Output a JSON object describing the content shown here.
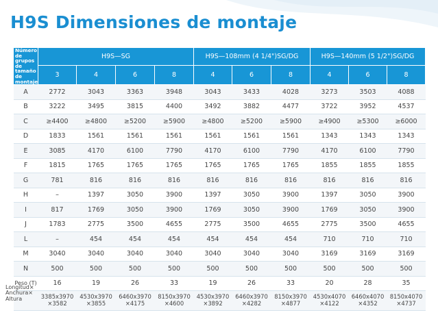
{
  "title": "H9S Dimensiones de montaje",
  "table": {
    "corner_label": "Número de grupos de tamaño de montaje",
    "groups": [
      "H9S—SG",
      "H9S—108mm (4 1/4\")SG/DG",
      "H9S—140mm (5 1/2\")SG/DG"
    ],
    "sizes": [
      [
        "3",
        "4",
        "6",
        "8"
      ],
      [
        "4",
        "6",
        "8"
      ],
      [
        "4",
        "6",
        "8"
      ]
    ],
    "rows": [
      {
        "label": "A",
        "values": [
          "2772",
          "3043",
          "3363",
          "3948",
          "3043",
          "3433",
          "4028",
          "3273",
          "3503",
          "4088"
        ]
      },
      {
        "label": "B",
        "values": [
          "3222",
          "3495",
          "3815",
          "4400",
          "3492",
          "3882",
          "4477",
          "3722",
          "3952",
          "4537"
        ]
      },
      {
        "label": "C",
        "values": [
          "≥4400",
          "≥4800",
          "≥5200",
          "≥5900",
          "≥4800",
          "≥5200",
          "≥5900",
          "≥4900",
          "≥5300",
          "≥6000"
        ]
      },
      {
        "label": "D",
        "values": [
          "1833",
          "1561",
          "1561",
          "1561",
          "1561",
          "1561",
          "1561",
          "1343",
          "1343",
          "1343"
        ]
      },
      {
        "label": "E",
        "values": [
          "3085",
          "4170",
          "6100",
          "7790",
          "4170",
          "6100",
          "7790",
          "4170",
          "6100",
          "7790"
        ]
      },
      {
        "label": "F",
        "values": [
          "1815",
          "1765",
          "1765",
          "1765",
          "1765",
          "1765",
          "1765",
          "1855",
          "1855",
          "1855"
        ]
      },
      {
        "label": "G",
        "values": [
          "781",
          "816",
          "816",
          "816",
          "816",
          "816",
          "816",
          "816",
          "816",
          "816"
        ]
      },
      {
        "label": "H",
        "values": [
          "–",
          "1397",
          "3050",
          "3900",
          "1397",
          "3050",
          "3900",
          "1397",
          "3050",
          "3900"
        ]
      },
      {
        "label": "I",
        "values": [
          "817",
          "1769",
          "3050",
          "3900",
          "1769",
          "3050",
          "3900",
          "1769",
          "3050",
          "3900"
        ]
      },
      {
        "label": "J",
        "values": [
          "1783",
          "2775",
          "3500",
          "4655",
          "2775",
          "3500",
          "4655",
          "2775",
          "3500",
          "4655"
        ]
      },
      {
        "label": "L",
        "values": [
          "–",
          "454",
          "454",
          "454",
          "454",
          "454",
          "454",
          "710",
          "710",
          "710"
        ]
      },
      {
        "label": "M",
        "values": [
          "3040",
          "3040",
          "3040",
          "3040",
          "3040",
          "3040",
          "3040",
          "3169",
          "3169",
          "3169"
        ]
      },
      {
        "label": "N",
        "values": [
          "500",
          "500",
          "500",
          "500",
          "500",
          "500",
          "500",
          "500",
          "500",
          "500"
        ]
      }
    ],
    "peso": {
      "label": "Peso (T)",
      "values": [
        "16",
        "19",
        "26",
        "33",
        "19",
        "26",
        "33",
        "20",
        "28",
        "35"
      ]
    },
    "dims": {
      "label": "Longitud× Anchura× Altura",
      "values": [
        "3385x3970 ×3582",
        "4530x3970 ×3855",
        "6460x3970 ×4175",
        "8150x3970 ×4600",
        "4530x3970 ×3892",
        "6460x3970 ×4282",
        "8150x3970 ×4877",
        "4530x4070 ×4122",
        "6460x4070 ×4352",
        "8150x4070 ×4737"
      ]
    }
  }
}
